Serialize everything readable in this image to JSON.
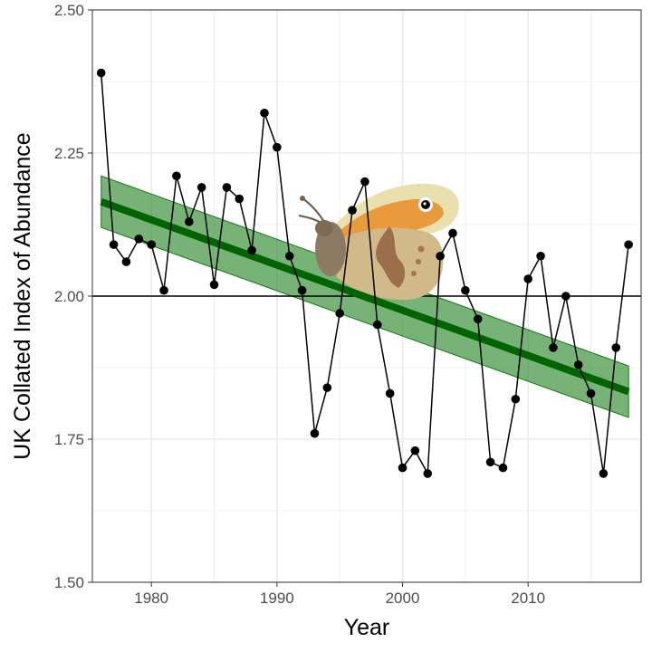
{
  "chart_data": {
    "type": "line",
    "xlabel": "Year",
    "ylabel": "UK Collated Index of Abundance",
    "xlim": [
      1975.3,
      2019.0
    ],
    "ylim": [
      1.5,
      2.5
    ],
    "x_ticks": [
      1980,
      1990,
      2000,
      2010
    ],
    "x_tick_labels": [
      "1980",
      "1990",
      "2000",
      "2010"
    ],
    "y_ticks": [
      1.5,
      1.75,
      2.0,
      2.25,
      2.5
    ],
    "y_tick_labels": [
      "1.50",
      "1.75",
      "2.00",
      "2.25",
      "2.50"
    ],
    "grid": true,
    "reference_line_y": 2.0,
    "series": [
      {
        "x": [
          1976,
          1977,
          1978,
          1979,
          1980,
          1981,
          1982,
          1983,
          1984,
          1985,
          1986,
          1987,
          1988,
          1989,
          1990,
          1991,
          1992,
          1993,
          1994,
          1995,
          1996,
          1997,
          1998,
          1999,
          2000,
          2001,
          2002,
          2003,
          2004,
          2005,
          2006,
          2007,
          2008,
          2009,
          2010,
          2011,
          2012,
          2013,
          2014,
          2015,
          2016,
          2017,
          2018
        ],
        "values": [
          2.39,
          2.09,
          2.06,
          2.1,
          2.09,
          2.01,
          2.21,
          2.13,
          2.19,
          2.02,
          2.19,
          2.17,
          2.08,
          2.32,
          2.26,
          2.07,
          2.01,
          1.76,
          1.84,
          1.97,
          2.15,
          2.2,
          1.95,
          1.83,
          1.7,
          1.73,
          1.69,
          2.07,
          2.11,
          2.01,
          1.96,
          1.71,
          1.7,
          1.82,
          2.03,
          2.07,
          1.91,
          2.0,
          1.88,
          1.83,
          1.69,
          1.91,
          2.09
        ]
      }
    ],
    "trend": {
      "x_start": 1976,
      "x_end": 2018,
      "fit_start": 2.165,
      "fit_end": 1.833,
      "ci_upper_start": 2.21,
      "ci_upper_end": 1.878,
      "ci_lower_start": 2.12,
      "ci_lower_end": 1.788
    },
    "colors": {
      "points": "#000000",
      "line": "#000000",
      "trend_line": "#006400",
      "ribbon": "#2e8b2e",
      "grid": "#ebebeb",
      "panel_border": "#333333"
    }
  },
  "decorations": {
    "butterfly": "butterfly-illustration"
  }
}
